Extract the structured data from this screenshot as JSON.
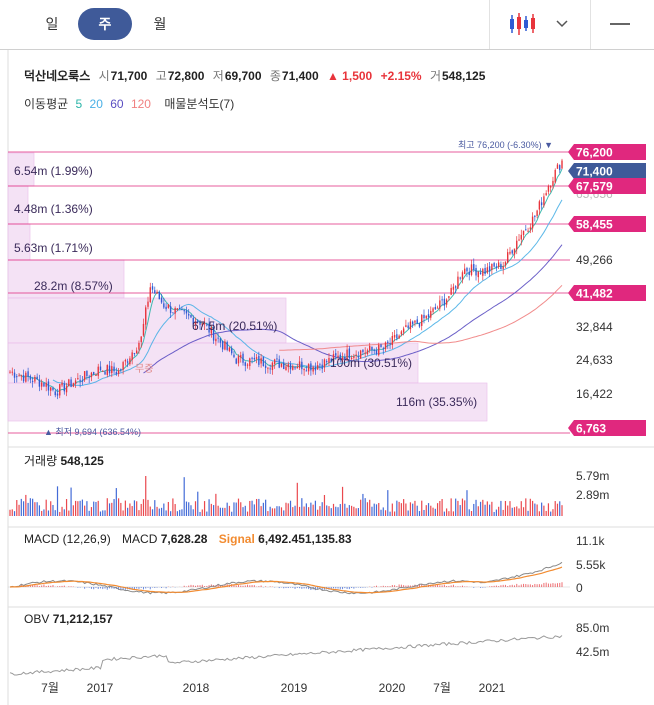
{
  "tabs": [
    {
      "label": "일",
      "active": false
    },
    {
      "label": "주",
      "active": true
    },
    {
      "label": "월",
      "active": false
    }
  ],
  "toolbar": {
    "chart_icon": "candlestick-icon",
    "dropdown_icon": "chevron-down-icon",
    "menu_icon": "menu-icon"
  },
  "stock": {
    "name": "덕산네오룩스",
    "open_label": "시",
    "open": "71,700",
    "high_label": "고",
    "high": "72,800",
    "low_label": "저",
    "low": "69,700",
    "close_label": "종",
    "close": "71,400",
    "change": "▲ 1,500",
    "change_pct": "+2.15%",
    "volume_label": "거",
    "volume": "548,125"
  },
  "ma": {
    "label": "이동평균",
    "periods": [
      "5",
      "20",
      "60",
      "120"
    ],
    "colors": [
      "#2bb5a8",
      "#4ab0e6",
      "#5b4fc2",
      "#f08080"
    ],
    "profile_label": "매물분석도(7)"
  },
  "price_chart": {
    "price_labels": [
      "71,400",
      "49,266",
      "32,844",
      "24,633",
      "16,422"
    ],
    "badges": [
      {
        "value": "76,200",
        "kind": "pink"
      },
      {
        "value": "71,400",
        "kind": "navy"
      },
      {
        "value": "67,579",
        "kind": "pink"
      },
      {
        "value": "58,455",
        "kind": "pink"
      },
      {
        "value": "41,482",
        "kind": "pink"
      },
      {
        "value": "6,763",
        "kind": "pink"
      }
    ],
    "partial_label": "65,656",
    "high_note": "최고 76,200 (-6.30%) ▼",
    "low_note": "▲ 최저 9,694 (636.54%)",
    "rights_label": "무증",
    "volume_profile": [
      {
        "text": "6.54m (1.99%)"
      },
      {
        "text": "4.48m (1.36%)"
      },
      {
        "text": "5.63m (1.71%)"
      },
      {
        "text": "28.2m (8.57%)"
      },
      {
        "text": "67.5m (20.51%)"
      },
      {
        "text": "100m (30.51%)"
      },
      {
        "text": "116m (35.35%)"
      }
    ]
  },
  "volume_pane": {
    "label": "거래량",
    "value": "548,125",
    "ticks": [
      "5.79m",
      "2.89m"
    ]
  },
  "macd_pane": {
    "label": "MACD (12,26,9)",
    "macd_label": "MACD",
    "macd_value": "7,628.28",
    "signal_label": "Signal",
    "signal_value": "6,492.451,135.83",
    "ticks": [
      "11.1k",
      "5.55k",
      "0"
    ],
    "colors": {
      "macd": "#888888",
      "signal": "#f28b30"
    }
  },
  "obv_pane": {
    "label": "OBV",
    "value": "71,212,157",
    "ticks": [
      "85.0m",
      "42.5m"
    ]
  },
  "x_axis": [
    "7월",
    "2017",
    "2018",
    "2019",
    "2020",
    "7월",
    "2021"
  ],
  "colors": {
    "up": "#e8343b",
    "down": "#2f5bd3",
    "accent": "#e0287e",
    "navy": "#3f5a99"
  }
}
